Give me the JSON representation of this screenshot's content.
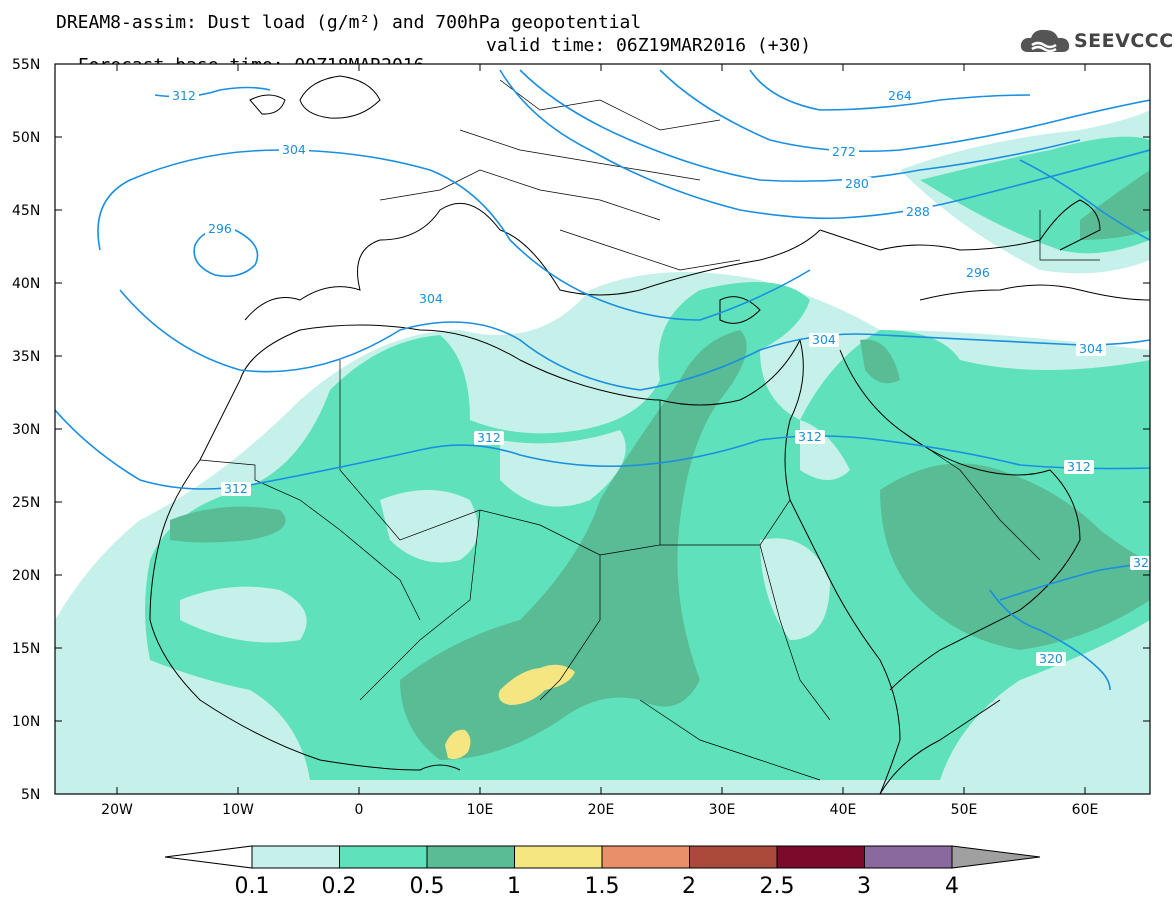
{
  "header": {
    "line1": "DREAM8-assim: Dust load (g/m²) and 700hPa geopotential",
    "base_time": "Forecast base time: 00Z18MAR2016",
    "valid_time": "valid time: 06Z19MAR2016 (+30)"
  },
  "logo": {
    "text": "SEEVCCC",
    "icon": "cloud-icon"
  },
  "map": {
    "lat_labels": [
      "55N",
      "50N",
      "45N",
      "40N",
      "35N",
      "30N",
      "25N",
      "20N",
      "15N",
      "10N",
      "5N"
    ],
    "lon_labels": [
      "20W",
      "10W",
      "0",
      "10E",
      "20E",
      "30E",
      "40E",
      "50E",
      "60E"
    ],
    "contour_labels": [
      "312",
      "304",
      "296",
      "304",
      "264",
      "272",
      "280",
      "288",
      "296",
      "304",
      "304",
      "312",
      "312",
      "312",
      "312",
      "320",
      "32"
    ]
  },
  "colorbar": {
    "labels": [
      "0.1",
      "0.2",
      "0.5",
      "1",
      "1.5",
      "2",
      "2.5",
      "3",
      "4"
    ],
    "colors": [
      "#c6f1ea",
      "#5fe2bb",
      "#5abc95",
      "#f6e682",
      "#e9906a",
      "#aa4a3a",
      "#7b0a2b",
      "#8a6a9e"
    ]
  },
  "colors": {
    "contour": "#1a8fe0",
    "land_border": "#000000",
    "dust_light": "#c6f1ea",
    "dust_mid": "#5fe2bb",
    "dust_dark": "#5abc95",
    "dust_yellow": "#f6e682"
  }
}
